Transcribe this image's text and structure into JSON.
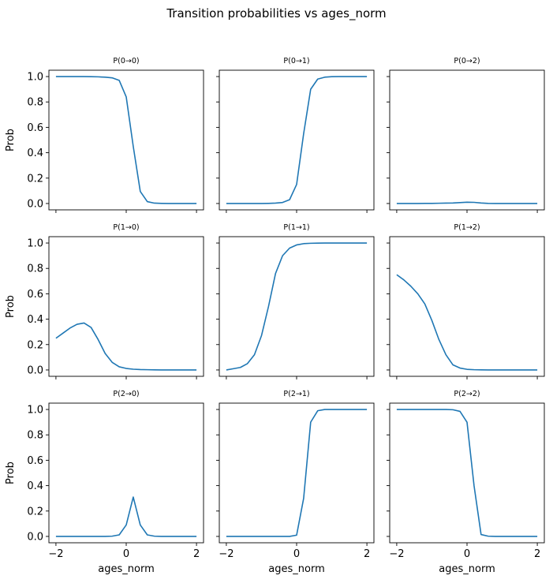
{
  "figure": {
    "title": "Transition probabilities vs ages_norm"
  },
  "chart_data": [
    {
      "type": "line",
      "title": "P(0→0)",
      "xlabel": "",
      "ylabel": "Prob",
      "xlim": [
        -2.2,
        2.2
      ],
      "ylim": [
        -0.05,
        1.05
      ],
      "x_ticks": [
        -2,
        0,
        2
      ],
      "y_ticks": [
        0.0,
        0.2,
        0.4,
        0.6,
        0.8,
        1.0
      ],
      "x_tick_labels": [
        "",
        "",
        ""
      ],
      "y_tick_labels": [
        "0.0",
        "0.2",
        "0.4",
        "0.6",
        "0.8",
        "1.0"
      ],
      "x": [
        -2.0,
        -1.8,
        -1.6,
        -1.4,
        -1.2,
        -1.0,
        -0.8,
        -0.6,
        -0.4,
        -0.2,
        0.0,
        0.2,
        0.4,
        0.6,
        0.8,
        1.0,
        1.2,
        1.4,
        1.6,
        1.8,
        2.0
      ],
      "y": [
        1.0,
        1.0,
        1.0,
        1.0,
        1.0,
        0.999,
        0.998,
        0.995,
        0.99,
        0.97,
        0.84,
        0.45,
        0.095,
        0.015,
        0.003,
        0.001,
        0.0,
        0.0,
        0.0,
        0.0,
        0.0
      ]
    },
    {
      "type": "line",
      "title": "P(0→1)",
      "xlabel": "",
      "ylabel": "",
      "xlim": [
        -2.2,
        2.2
      ],
      "ylim": [
        -0.05,
        1.05
      ],
      "x_ticks": [
        -2,
        0,
        2
      ],
      "y_ticks": [
        0.0,
        0.2,
        0.4,
        0.6,
        0.8,
        1.0
      ],
      "x_tick_labels": [
        "",
        "",
        ""
      ],
      "y_tick_labels": [
        "",
        "",
        "",
        "",
        "",
        ""
      ],
      "x": [
        -2.0,
        -1.8,
        -1.6,
        -1.4,
        -1.2,
        -1.0,
        -0.8,
        -0.6,
        -0.4,
        -0.2,
        0.0,
        0.2,
        0.4,
        0.6,
        0.8,
        1.0,
        1.2,
        1.4,
        1.6,
        1.8,
        2.0
      ],
      "y": [
        0.0,
        0.0,
        0.0,
        0.0,
        0.0,
        0.0,
        0.001,
        0.003,
        0.008,
        0.03,
        0.15,
        0.55,
        0.9,
        0.98,
        0.995,
        0.999,
        1.0,
        1.0,
        1.0,
        1.0,
        1.0
      ]
    },
    {
      "type": "line",
      "title": "P(0→2)",
      "xlabel": "",
      "ylabel": "",
      "xlim": [
        -2.2,
        2.2
      ],
      "ylim": [
        -0.05,
        1.05
      ],
      "x_ticks": [
        -2,
        0,
        2
      ],
      "y_ticks": [
        0.0,
        0.2,
        0.4,
        0.6,
        0.8,
        1.0
      ],
      "x_tick_labels": [
        "",
        "",
        ""
      ],
      "y_tick_labels": [
        "",
        "",
        "",
        "",
        "",
        ""
      ],
      "x": [
        -2.0,
        -1.8,
        -1.6,
        -1.4,
        -1.2,
        -1.0,
        -0.8,
        -0.6,
        -0.4,
        -0.2,
        0.0,
        0.2,
        0.4,
        0.6,
        0.8,
        1.0,
        1.2,
        1.4,
        1.6,
        1.8,
        2.0
      ],
      "y": [
        0.0,
        0.0,
        0.0,
        0.0,
        0.001,
        0.001,
        0.002,
        0.003,
        0.004,
        0.007,
        0.01,
        0.009,
        0.004,
        0.001,
        0.0,
        0.0,
        0.0,
        0.0,
        0.0,
        0.0,
        0.0
      ]
    },
    {
      "type": "line",
      "title": "P(1→0)",
      "xlabel": "",
      "ylabel": "Prob",
      "xlim": [
        -2.2,
        2.2
      ],
      "ylim": [
        -0.05,
        1.05
      ],
      "x_ticks": [
        -2,
        0,
        2
      ],
      "y_ticks": [
        0.0,
        0.2,
        0.4,
        0.6,
        0.8,
        1.0
      ],
      "x_tick_labels": [
        "",
        "",
        ""
      ],
      "y_tick_labels": [
        "0.0",
        "0.2",
        "0.4",
        "0.6",
        "0.8",
        "1.0"
      ],
      "x": [
        -2.0,
        -1.8,
        -1.6,
        -1.4,
        -1.2,
        -1.0,
        -0.8,
        -0.6,
        -0.4,
        -0.2,
        0.0,
        0.2,
        0.4,
        0.6,
        0.8,
        1.0,
        1.2,
        1.4,
        1.6,
        1.8,
        2.0
      ],
      "y": [
        0.25,
        0.29,
        0.33,
        0.36,
        0.37,
        0.335,
        0.24,
        0.13,
        0.06,
        0.025,
        0.012,
        0.006,
        0.003,
        0.002,
        0.001,
        0.0,
        0.0,
        0.0,
        0.0,
        0.0,
        0.0
      ]
    },
    {
      "type": "line",
      "title": "P(1→1)",
      "xlabel": "",
      "ylabel": "",
      "xlim": [
        -2.2,
        2.2
      ],
      "ylim": [
        -0.05,
        1.05
      ],
      "x_ticks": [
        -2,
        0,
        2
      ],
      "y_ticks": [
        0.0,
        0.2,
        0.4,
        0.6,
        0.8,
        1.0
      ],
      "x_tick_labels": [
        "",
        "",
        ""
      ],
      "y_tick_labels": [
        "",
        "",
        "",
        "",
        "",
        ""
      ],
      "x": [
        -2.0,
        -1.8,
        -1.6,
        -1.4,
        -1.2,
        -1.0,
        -0.8,
        -0.6,
        -0.4,
        -0.2,
        0.0,
        0.2,
        0.4,
        0.6,
        0.8,
        1.0,
        1.2,
        1.4,
        1.6,
        1.8,
        2.0
      ],
      "y": [
        0.0,
        0.01,
        0.02,
        0.05,
        0.12,
        0.27,
        0.5,
        0.76,
        0.9,
        0.96,
        0.985,
        0.995,
        0.998,
        0.999,
        1.0,
        1.0,
        1.0,
        1.0,
        1.0,
        1.0,
        1.0
      ]
    },
    {
      "type": "line",
      "title": "P(1→2)",
      "xlabel": "",
      "ylabel": "",
      "xlim": [
        -2.2,
        2.2
      ],
      "ylim": [
        -0.05,
        1.05
      ],
      "x_ticks": [
        -2,
        0,
        2
      ],
      "y_ticks": [
        0.0,
        0.2,
        0.4,
        0.6,
        0.8,
        1.0
      ],
      "x_tick_labels": [
        "",
        "",
        ""
      ],
      "y_tick_labels": [
        "",
        "",
        "",
        "",
        "",
        ""
      ],
      "x": [
        -2.0,
        -1.8,
        -1.6,
        -1.4,
        -1.2,
        -1.0,
        -0.8,
        -0.6,
        -0.4,
        -0.2,
        0.0,
        0.2,
        0.4,
        0.6,
        0.8,
        1.0,
        1.2,
        1.4,
        1.6,
        1.8,
        2.0
      ],
      "y": [
        0.75,
        0.71,
        0.66,
        0.6,
        0.52,
        0.39,
        0.24,
        0.12,
        0.04,
        0.015,
        0.005,
        0.002,
        0.001,
        0.0,
        0.0,
        0.0,
        0.0,
        0.0,
        0.0,
        0.0,
        0.0
      ]
    },
    {
      "type": "line",
      "title": "P(2→0)",
      "xlabel": "ages_norm",
      "ylabel": "Prob",
      "xlim": [
        -2.2,
        2.2
      ],
      "ylim": [
        -0.05,
        1.05
      ],
      "x_ticks": [
        -2,
        0,
        2
      ],
      "y_ticks": [
        0.0,
        0.2,
        0.4,
        0.6,
        0.8,
        1.0
      ],
      "x_tick_labels": [
        "−2",
        "0",
        "2"
      ],
      "y_tick_labels": [
        "0.0",
        "0.2",
        "0.4",
        "0.6",
        "0.8",
        "1.0"
      ],
      "x": [
        -2.0,
        -1.8,
        -1.6,
        -1.4,
        -1.2,
        -1.0,
        -0.8,
        -0.6,
        -0.4,
        -0.2,
        0.0,
        0.2,
        0.4,
        0.6,
        0.8,
        1.0,
        1.2,
        1.4,
        1.6,
        1.8,
        2.0
      ],
      "y": [
        0.0,
        0.0,
        0.0,
        0.0,
        0.0,
        0.0,
        0.0,
        0.0,
        0.002,
        0.012,
        0.09,
        0.31,
        0.09,
        0.012,
        0.002,
        0.0,
        0.0,
        0.0,
        0.0,
        0.0,
        0.0
      ]
    },
    {
      "type": "line",
      "title": "P(2→1)",
      "xlabel": "ages_norm",
      "ylabel": "",
      "xlim": [
        -2.2,
        2.2
      ],
      "ylim": [
        -0.05,
        1.05
      ],
      "x_ticks": [
        -2,
        0,
        2
      ],
      "y_ticks": [
        0.0,
        0.2,
        0.4,
        0.6,
        0.8,
        1.0
      ],
      "x_tick_labels": [
        "−2",
        "0",
        "2"
      ],
      "y_tick_labels": [
        "",
        "",
        "",
        "",
        "",
        ""
      ],
      "x": [
        -2.0,
        -1.8,
        -1.6,
        -1.4,
        -1.2,
        -1.0,
        -0.8,
        -0.6,
        -0.4,
        -0.2,
        0.0,
        0.2,
        0.4,
        0.6,
        0.8,
        1.0,
        1.2,
        1.4,
        1.6,
        1.8,
        2.0
      ],
      "y": [
        0.0,
        0.0,
        0.0,
        0.0,
        0.0,
        0.0,
        0.0,
        0.0,
        0.0,
        0.0,
        0.01,
        0.3,
        0.9,
        0.99,
        1.0,
        1.0,
        1.0,
        1.0,
        1.0,
        1.0,
        1.0
      ]
    },
    {
      "type": "line",
      "title": "P(2→2)",
      "xlabel": "ages_norm",
      "ylabel": "",
      "xlim": [
        -2.2,
        2.2
      ],
      "ylim": [
        -0.05,
        1.05
      ],
      "x_ticks": [
        -2,
        0,
        2
      ],
      "y_ticks": [
        0.0,
        0.2,
        0.4,
        0.6,
        0.8,
        1.0
      ],
      "x_tick_labels": [
        "−2",
        "0",
        "2"
      ],
      "y_tick_labels": [
        "",
        "",
        "",
        "",
        "",
        ""
      ],
      "x": [
        -2.0,
        -1.8,
        -1.6,
        -1.4,
        -1.2,
        -1.0,
        -0.8,
        -0.6,
        -0.4,
        -0.2,
        0.0,
        0.2,
        0.4,
        0.6,
        0.8,
        1.0,
        1.2,
        1.4,
        1.6,
        1.8,
        2.0
      ],
      "y": [
        1.0,
        1.0,
        1.0,
        1.0,
        1.0,
        1.0,
        1.0,
        1.0,
        0.998,
        0.985,
        0.9,
        0.4,
        0.015,
        0.002,
        0.0,
        0.0,
        0.0,
        0.0,
        0.0,
        0.0,
        0.0
      ]
    }
  ],
  "style": {
    "line_color": "#1f77b4",
    "axis_color": "#000000",
    "background": "#ffffff"
  }
}
